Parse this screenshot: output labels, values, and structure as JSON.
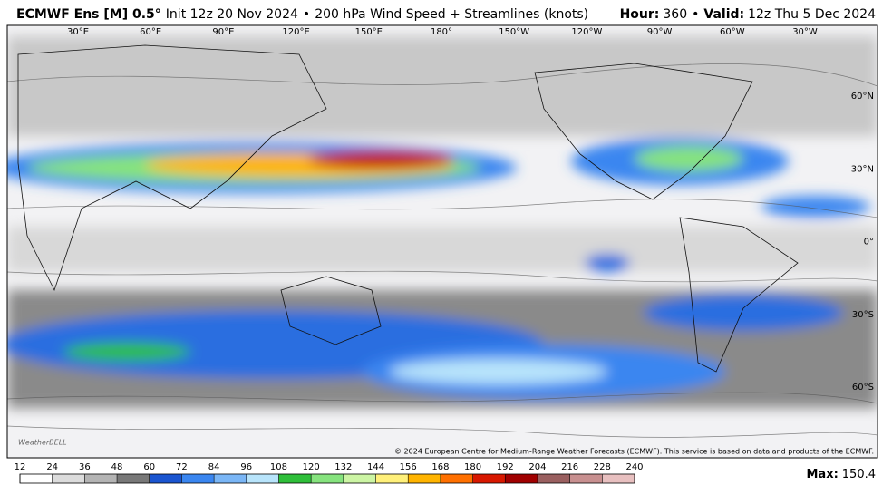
{
  "header": {
    "model": "ECMWF Ens [M] 0.5°",
    "init": "Init 12z 20 Nov 2024",
    "separator": "•",
    "product": "200 hPa Wind Speed + Streamlines (knots)",
    "hour_label": "Hour:",
    "hour": "360",
    "valid_label": "Valid:",
    "valid": "12z Thu 5 Dec 2024"
  },
  "map": {
    "lon_labels": [
      "30°E",
      "60°E",
      "90°E",
      "120°E",
      "150°E",
      "180°",
      "150°W",
      "120°W",
      "90°W",
      "60°W",
      "30°W"
    ],
    "lat_labels": [
      "60°N",
      "30°N",
      "0°",
      "30°S",
      "60°S"
    ],
    "copyright": "© 2024 European Centre for Medium-Range Weather Forecasts (ECMWF). This service is based on data and products of the ECMWF.",
    "logo": "WeatherBELL"
  },
  "colorbar": {
    "ticks": [
      12,
      24,
      36,
      48,
      60,
      72,
      84,
      96,
      108,
      120,
      132,
      144,
      156,
      168,
      180,
      192,
      204,
      216,
      228,
      240
    ],
    "colors": [
      "#ffffff",
      "#dcdcdc",
      "#b4b4b4",
      "#787878",
      "#1a55d0",
      "#3a86f0",
      "#7ab6f6",
      "#b8e4fb",
      "#2fbf3a",
      "#86e37e",
      "#ccf5a4",
      "#fff07a",
      "#ffb400",
      "#ff7000",
      "#d81800",
      "#a00000",
      "#9a6060",
      "#c89090",
      "#e8c0c0"
    ]
  },
  "footer": {
    "max_label": "Max:",
    "max": 150.4
  }
}
